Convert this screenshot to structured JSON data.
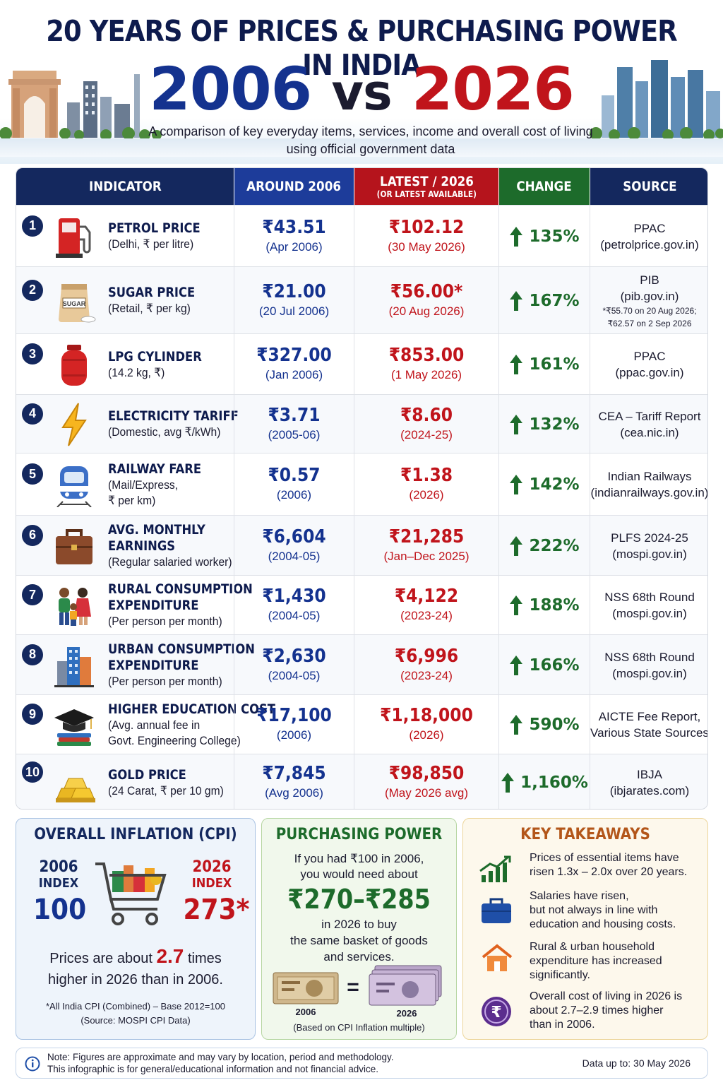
{
  "header": {
    "title_line1": "20 YEARS OF PRICES & PURCHASING POWER IN INDIA",
    "year_old": "2006",
    "vs": "vs",
    "year_new": "2026",
    "subtitle_line1": "A comparison of key everyday items, services, income and overall cost of living",
    "subtitle_line2": "using official government data"
  },
  "table": {
    "headers": {
      "indicator": "INDICATOR",
      "old": "AROUND 2006",
      "new": "LATEST / 2026",
      "new_sub": "(OR LATEST AVAILABLE)",
      "change": "CHANGE",
      "source": "SOURCE"
    },
    "rows": [
      {
        "num": "1",
        "icon": "fuel-pump-icon",
        "title": [
          "PETROL PRICE"
        ],
        "desc": [
          "(Delhi, ₹ per litre)"
        ],
        "old": "₹43.51",
        "old_period": "(Apr 2006)",
        "new": "₹102.12",
        "new_period": "(30 May 2026)",
        "change": "135%",
        "source": [
          "PPAC",
          "(petrolprice.gov.in)"
        ],
        "source_note": []
      },
      {
        "num": "2",
        "icon": "sugar-sack-icon",
        "title": [
          "SUGAR PRICE"
        ],
        "desc": [
          "(Retail, ₹ per kg)"
        ],
        "old": "₹21.00",
        "old_period": "(20 Jul 2006)",
        "new": "₹56.00*",
        "new_period": "(20 Aug 2026)",
        "change": "167%",
        "source": [
          "PIB",
          "(pib.gov.in)"
        ],
        "source_note": [
          "*₹55.70 on 20 Aug 2026;",
          "₹62.57 on 2 Sep 2026"
        ]
      },
      {
        "num": "3",
        "icon": "lpg-cylinder-icon",
        "title": [
          "LPG CYLINDER"
        ],
        "desc": [
          "(14.2 kg, ₹)"
        ],
        "old": "₹327.00",
        "old_period": "(Jan 2006)",
        "new": "₹853.00",
        "new_period": "(1 May 2026)",
        "change": "161%",
        "source": [
          "PPAC",
          "(ppac.gov.in)"
        ],
        "source_note": []
      },
      {
        "num": "4",
        "icon": "lightning-icon",
        "title": [
          "ELECTRICITY TARIFF"
        ],
        "desc": [
          "(Domestic, avg ₹/kWh)"
        ],
        "old": "₹3.71",
        "old_period": "(2005-06)",
        "new": "₹8.60",
        "new_period": "(2024-25)",
        "change": "132%",
        "source": [
          "CEA – Tariff Report",
          "(cea.nic.in)"
        ],
        "source_note": []
      },
      {
        "num": "5",
        "icon": "train-icon",
        "title": [
          "RAILWAY FARE"
        ],
        "desc": [
          "(Mail/Express,",
          "₹ per km)"
        ],
        "old": "₹0.57",
        "old_period": "(2006)",
        "new": "₹1.38",
        "new_period": "(2026)",
        "change": "142%",
        "source": [
          "Indian Railways",
          "(indianrailways.gov.in)"
        ],
        "source_note": []
      },
      {
        "num": "6",
        "icon": "briefcase-icon",
        "title": [
          "AVG. MONTHLY",
          "EARNINGS"
        ],
        "desc": [
          "(Regular salaried worker)"
        ],
        "old": "₹6,604",
        "old_period": "(2004-05)",
        "new": "₹21,285",
        "new_period": "(Jan–Dec 2025)",
        "change": "222%",
        "source": [
          "PLFS 2024-25",
          "(mospi.gov.in)"
        ],
        "source_note": []
      },
      {
        "num": "7",
        "icon": "family-icon",
        "title": [
          "RURAL CONSUMPTION",
          "EXPENDITURE"
        ],
        "desc": [
          "(Per person per month)"
        ],
        "old": "₹1,430",
        "old_period": "(2004-05)",
        "new": "₹4,122",
        "new_period": "(2023-24)",
        "change": "188%",
        "source": [
          "NSS 68th Round",
          "(mospi.gov.in)"
        ],
        "source_note": []
      },
      {
        "num": "8",
        "icon": "buildings-icon",
        "title": [
          "URBAN CONSUMPTION",
          "EXPENDITURE"
        ],
        "desc": [
          "(Per person per month)"
        ],
        "old": "₹2,630",
        "old_period": "(2004-05)",
        "new": "₹6,996",
        "new_period": "(2023-24)",
        "change": "166%",
        "source": [
          "NSS 68th Round",
          "(mospi.gov.in)"
        ],
        "source_note": []
      },
      {
        "num": "9",
        "icon": "graduation-cap-icon",
        "title": [
          "HIGHER EDUCATION COST"
        ],
        "desc": [
          "(Avg. annual fee in",
          "Govt. Engineering College)"
        ],
        "old": "₹17,100",
        "old_period": "(2006)",
        "new": "₹1,18,000",
        "new_period": "(2026)",
        "change": "590%",
        "source": [
          "AICTE Fee Report,",
          "Various State Sources"
        ],
        "source_note": []
      },
      {
        "num": "10",
        "icon": "gold-bars-icon",
        "title": [
          "GOLD PRICE"
        ],
        "desc": [
          "(24 Carat, ₹ per 10 gm)"
        ],
        "old": "₹7,845",
        "old_period": "(Avg 2006)",
        "new": "₹98,850",
        "new_period": "(May 2026 avg)",
        "change": "1,160%",
        "source": [
          "IBJA",
          "(ibjarates.com)"
        ],
        "source_note": []
      }
    ]
  },
  "inflation": {
    "title": "OVERALL INFLATION (CPI)",
    "old_year": "2006",
    "old_label": "INDEX",
    "old_value": "100",
    "new_year": "2026",
    "new_label": "INDEX",
    "new_value": "273*",
    "text_pre": "Prices are about ",
    "text_mult": "2.7",
    "text_post": " times",
    "text_line2": "higher in 2026 than in 2006.",
    "footnote1": "*All India CPI (Combined) – Base 2012=100",
    "footnote2": "(Source: MOSPI CPI Data)"
  },
  "purchasing": {
    "title": "PURCHASING POWER",
    "line1": "If you had ₹100 in 2006,",
    "line2": "you would need about",
    "amount": "₹270–₹285",
    "line3": "in 2026 to buy",
    "line4": "the same basket of goods",
    "line5": "and services.",
    "label_old": "2006",
    "equals": "=",
    "label_new": "2026",
    "basis": "(Based on CPI Inflation multiple)"
  },
  "takeaways": {
    "title": "KEY TAKEAWAYS",
    "items": [
      {
        "icon": "growth-chart-icon",
        "lines": [
          "Prices of essential items have",
          "risen 1.3x – 2.0x over 20 years."
        ]
      },
      {
        "icon": "briefcase-icon",
        "lines": [
          "Salaries have risen,",
          "but not always in line with",
          "education and housing costs."
        ]
      },
      {
        "icon": "house-icon",
        "lines": [
          "Rural & urban household",
          "expenditure has increased",
          "significantly."
        ]
      },
      {
        "icon": "rupee-coin-icon",
        "lines": [
          "Overall cost of living in 2026 is",
          "about 2.7–2.9 times higher",
          "than in 2006."
        ]
      }
    ]
  },
  "footer": {
    "note_line1": "Note: Figures are approximate and may vary by location, period and methodology.",
    "note_line2": "This infographic is for general/educational information and not financial advice.",
    "data_up_to": "Data up to: 30 May 2026"
  },
  "colors": {
    "navy": "#14285e",
    "blue": "#14328f",
    "red": "#c0141b",
    "green": "#1d6b2b"
  }
}
